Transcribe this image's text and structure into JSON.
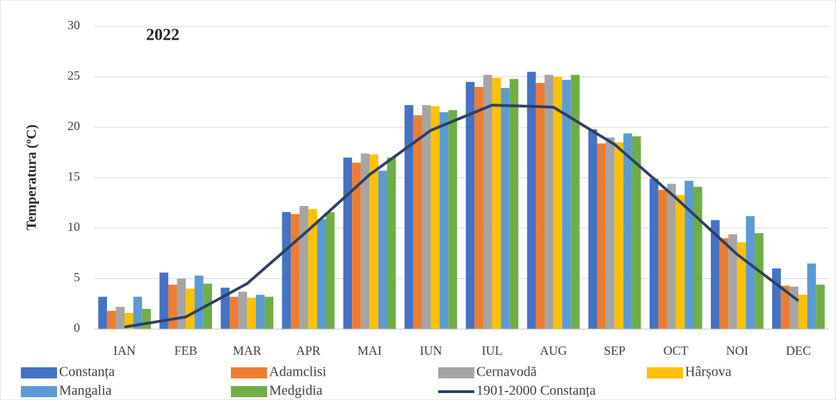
{
  "chart_data": {
    "type": "bar",
    "title": "2022",
    "y_label": "Temperatura (ºC)",
    "categories": [
      "IAN",
      "FEB",
      "MAR",
      "APR",
      "MAI",
      "IUN",
      "IUL",
      "AUG",
      "SEP",
      "OCT",
      "NOI",
      "DEC"
    ],
    "ylim": [
      0,
      30
    ],
    "yticks": [
      0,
      5,
      10,
      15,
      20,
      25,
      30
    ],
    "grid": true,
    "legend": "bottom",
    "series": [
      {
        "name": "Constanța",
        "color": "#4472c4",
        "values": [
          3.2,
          5.6,
          4.1,
          11.6,
          17.0,
          22.2,
          24.5,
          25.5,
          19.8,
          14.9,
          10.8,
          6.0
        ]
      },
      {
        "name": "Adamclisi",
        "color": "#ed7d31",
        "values": [
          1.8,
          4.4,
          3.2,
          11.4,
          16.5,
          21.2,
          24.0,
          24.4,
          18.4,
          13.8,
          9.0,
          4.3
        ]
      },
      {
        "name": "Cernavodă",
        "color": "#a5a5a5",
        "values": [
          2.2,
          5.0,
          3.7,
          12.2,
          17.4,
          22.2,
          25.2,
          25.2,
          19.0,
          14.4,
          9.4,
          4.2
        ]
      },
      {
        "name": "Hârșova",
        "color": "#ffc000",
        "values": [
          1.6,
          4.0,
          3.1,
          11.9,
          17.3,
          22.1,
          24.9,
          25.0,
          18.5,
          13.3,
          8.6,
          3.4
        ]
      },
      {
        "name": "Mangalia",
        "color": "#5b9bd5",
        "values": [
          3.2,
          5.3,
          3.4,
          10.9,
          15.7,
          21.5,
          23.9,
          24.7,
          19.4,
          14.7,
          11.2,
          6.5
        ]
      },
      {
        "name": "Medgidia",
        "color": "#70ad47",
        "values": [
          2.0,
          4.5,
          3.2,
          11.6,
          17.0,
          21.7,
          24.8,
          25.2,
          19.1,
          14.1,
          9.5,
          4.4
        ]
      },
      {
        "name": "1901-2000 Constanța",
        "color": "#2e4060",
        "type": "line",
        "values": [
          0.2,
          1.2,
          4.5,
          9.8,
          15.3,
          19.7,
          22.2,
          22.0,
          18.3,
          13.0,
          7.4,
          2.8
        ]
      }
    ]
  }
}
